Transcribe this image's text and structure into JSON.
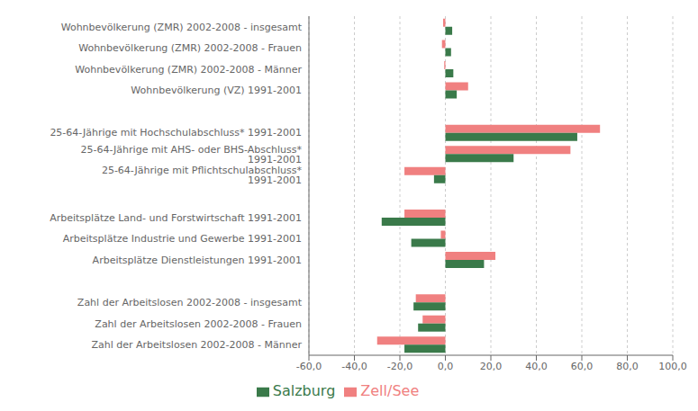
{
  "chart_data": {
    "type": "bar",
    "orientation": "horizontal",
    "categories": [
      "Wohnbevölkerung (ZMR) 2002-2008 - insgesamt",
      "Wohnbevölkerung (ZMR) 2002-2008 - Frauen",
      "Wohnbevölkerung (ZMR) 2002-2008 - Männer",
      "Wohnbevölkerung (VZ) 1991-2001",
      null,
      "25-64-Jährige mit Hochschulabschluss* 1991-2001",
      "25-64-Jährige mit AHS- oder BHS-Abschluss* 1991-2001",
      "25-64-Jährige mit Pflichtschulabschluss* 1991-2001",
      null,
      "Arbeitsplätze Land- und Forstwirtschaft 1991-2001",
      "Arbeitsplätze Industrie und Gewerbe 1991-2001",
      "Arbeitsplätze Dienstleistungen 1991-2001",
      null,
      "Zahl der Arbeitslosen 2002-2008 - insgesamt",
      "Zahl der Arbeitslosen 2002-2008 - Frauen",
      "Zahl der Arbeitslosen 2002-2008 - Männer"
    ],
    "series": [
      {
        "name": "Zell/See",
        "color": "#F08080",
        "values": [
          -1.0,
          -1.5,
          -0.5,
          10.0,
          null,
          68.0,
          55.0,
          -18.0,
          null,
          -18.0,
          -2.0,
          22.0,
          null,
          -13.0,
          -10.0,
          -30.0
        ]
      },
      {
        "name": "Salzburg",
        "color": "#3A7A4A",
        "values": [
          3.0,
          2.5,
          3.5,
          5.0,
          null,
          58.0,
          30.0,
          -5.0,
          null,
          -28.0,
          -15.0,
          17.0,
          null,
          -14.0,
          -12.0,
          -18.0
        ]
      }
    ],
    "xlim": [
      -60,
      100
    ],
    "xticks": [
      {
        "value": -60,
        "label": "-60,0"
      },
      {
        "value": -40,
        "label": "-40,0"
      },
      {
        "value": -20,
        "label": "-20,0"
      },
      {
        "value": 0,
        "label": "0,0"
      },
      {
        "value": 20,
        "label": "20,0"
      },
      {
        "value": 40,
        "label": "40,0"
      },
      {
        "value": 60,
        "label": "60,0"
      },
      {
        "value": 80,
        "label": "80,0"
      },
      {
        "value": 100,
        "label": "100,0"
      }
    ],
    "grid": true,
    "legend": "bottom"
  }
}
